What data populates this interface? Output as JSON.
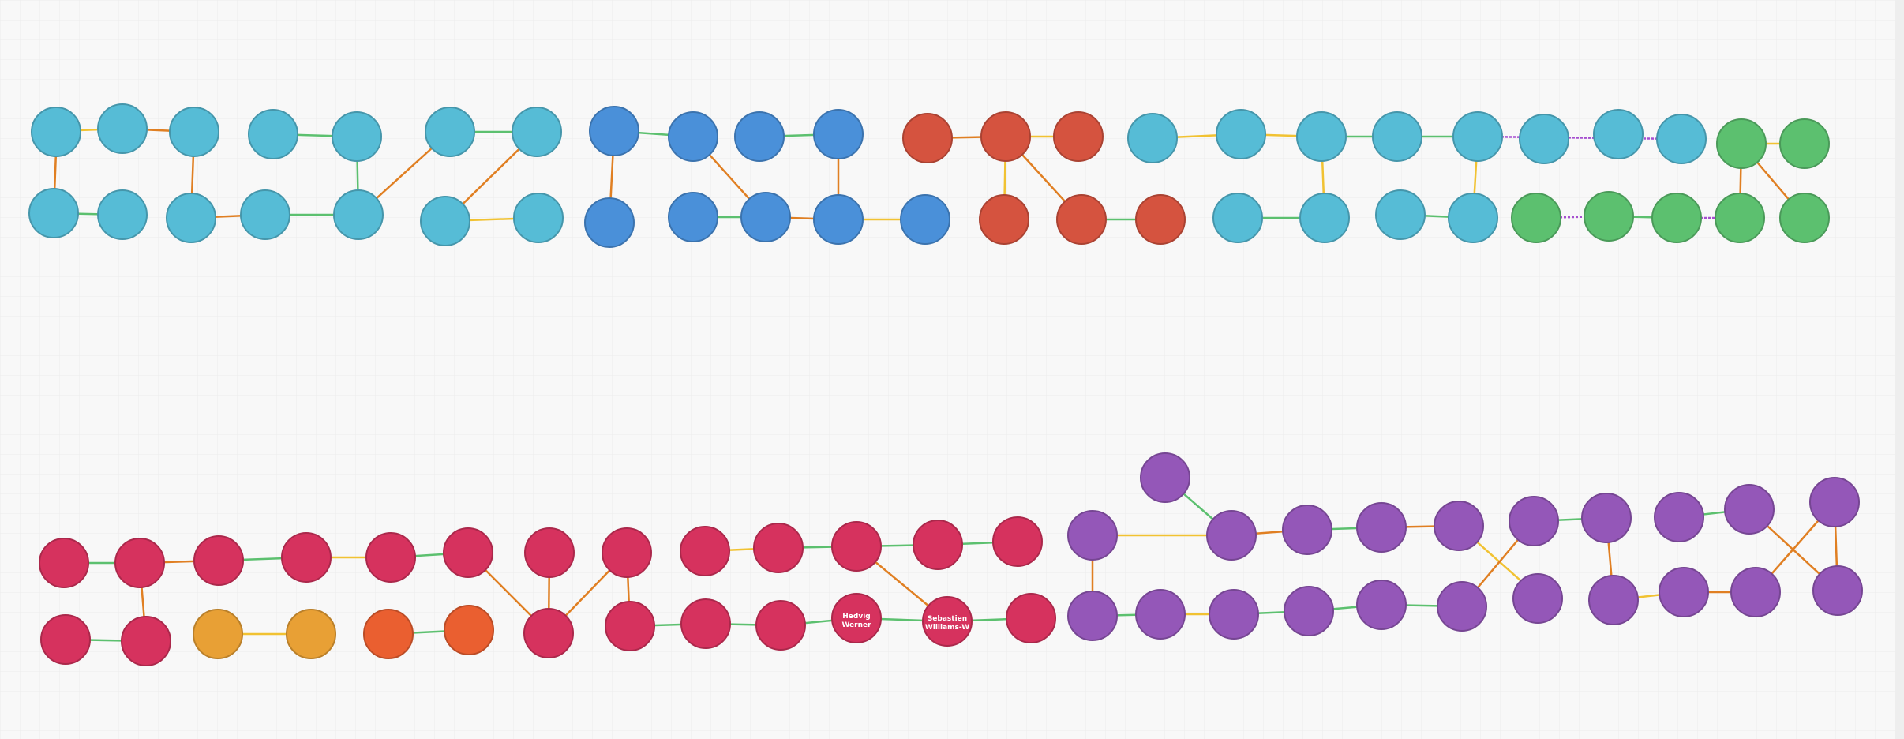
{
  "colors": {
    "background": "#f8f8f8",
    "grid": "#ececec",
    "teal": "#56bcd6",
    "blue": "#4a90d9",
    "red": "#d5533f",
    "green": "#5cc06f",
    "crimson": "#d6325e",
    "orange": "#e8a035",
    "darkorange": "#ea5f30",
    "purple": "#9457b8",
    "edge_orange": "#e07f22",
    "edge_green": "#5cc06f",
    "edge_yellow": "#f1c232",
    "edge_purple": "#a64fd0"
  },
  "labels": {
    "hedvig": [
      "Hedvig",
      "Werner"
    ],
    "sebastien": [
      "Sebastien",
      "Williams-W"
    ]
  }
}
